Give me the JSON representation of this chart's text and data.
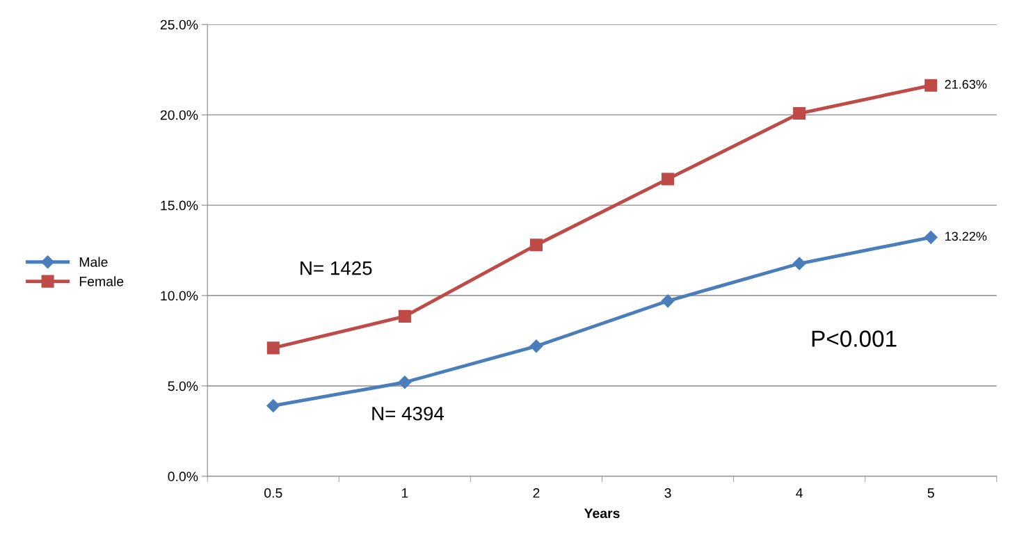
{
  "chart_data": {
    "type": "line",
    "xlabel": "Years",
    "categories": [
      "0.5",
      "1",
      "2",
      "3",
      "4",
      "5"
    ],
    "series": [
      {
        "name": "Male",
        "color": "#4a7ebb",
        "marker": "diamond",
        "values": [
          3.9,
          5.2,
          7.2,
          9.7,
          11.77,
          13.22
        ],
        "value_labels": [
          null,
          null,
          null,
          null,
          null,
          "13.22%"
        ]
      },
      {
        "name": "Female",
        "color": "#be4b48",
        "marker": "square",
        "values": [
          7.1,
          8.85,
          12.8,
          16.45,
          20.08,
          21.63
        ],
        "value_labels": [
          null,
          null,
          null,
          null,
          null,
          "21.63%"
        ]
      }
    ],
    "ylim": [
      0,
      25
    ],
    "yticks": [
      {
        "value": 0,
        "label": "0.0%"
      },
      {
        "value": 5,
        "label": "5.0%"
      },
      {
        "value": 10,
        "label": "10.0%"
      },
      {
        "value": 15,
        "label": "15.0%"
      },
      {
        "value": 20,
        "label": "20.0%"
      },
      {
        "value": 25,
        "label": "25.0%"
      }
    ],
    "grid": "y",
    "legend": "left",
    "line_style": "solid",
    "annotations": [
      "N= 1425",
      "N= 4394",
      "P<0.001"
    ]
  }
}
